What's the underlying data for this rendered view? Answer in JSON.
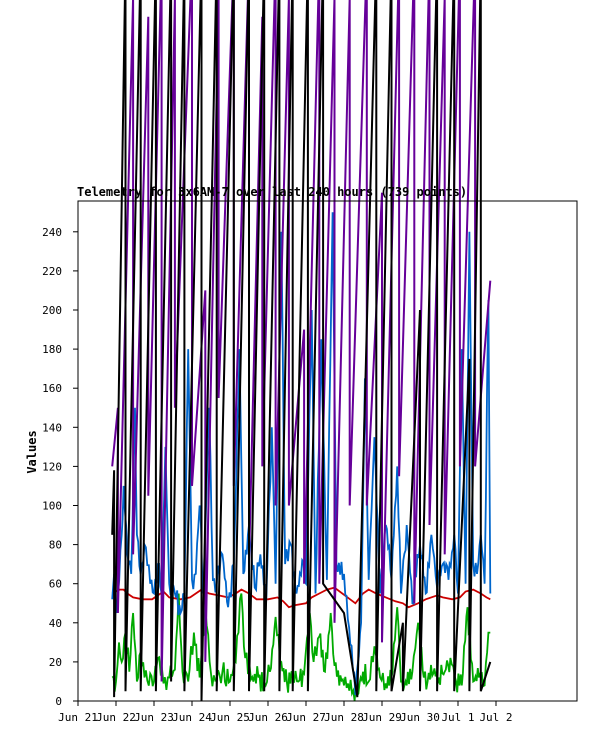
{
  "chart_data": {
    "type": "line",
    "title": "Telemetry for 3x6AM-7 over last 240 hours (739 points)",
    "xlabel": "",
    "ylabel": "Values",
    "ylim": [
      0,
      255
    ],
    "yticks": [
      0,
      20,
      40,
      60,
      80,
      100,
      120,
      140,
      160,
      180,
      200,
      220,
      240
    ],
    "xlim_days": [
      0,
      11
    ],
    "x_tick_labels": [
      "Jun 21",
      "Jun 22",
      "Jun 23",
      "Jun 24",
      "Jun 25",
      "Jun 26",
      "Jun 27",
      "Jun 28",
      "Jun 29",
      "Jun 30",
      "Jul 1",
      "Jul 2"
    ],
    "grid": false,
    "legend": "none",
    "series": [
      {
        "color": "#cc0000",
        "style": "smooth",
        "points": [
          [
            0.9,
            55
          ],
          [
            1.0,
            56
          ],
          [
            1.1,
            57
          ],
          [
            1.2,
            57
          ],
          [
            1.3,
            55
          ],
          [
            1.45,
            53
          ],
          [
            1.7,
            52
          ],
          [
            1.95,
            52
          ],
          [
            2.1,
            54
          ],
          [
            2.25,
            56
          ],
          [
            2.4,
            53
          ],
          [
            2.7,
            52
          ],
          [
            2.95,
            53
          ],
          [
            3.1,
            55
          ],
          [
            3.25,
            57
          ],
          [
            3.45,
            55
          ],
          [
            3.7,
            54
          ],
          [
            3.95,
            53
          ],
          [
            4.15,
            55
          ],
          [
            4.3,
            57
          ],
          [
            4.5,
            55
          ],
          [
            4.7,
            52
          ],
          [
            5.0,
            52
          ],
          [
            5.25,
            53
          ],
          [
            5.4,
            51
          ],
          [
            5.55,
            48
          ],
          [
            5.7,
            49
          ],
          [
            6.0,
            50
          ],
          [
            6.15,
            53
          ],
          [
            6.35,
            55
          ],
          [
            6.55,
            57
          ],
          [
            6.75,
            58
          ],
          [
            7.3,
            50
          ],
          [
            7.5,
            55
          ],
          [
            7.65,
            57
          ],
          [
            7.85,
            55
          ],
          [
            8.1,
            53
          ],
          [
            8.35,
            51
          ],
          [
            8.55,
            50
          ],
          [
            8.7,
            48
          ],
          [
            8.95,
            50
          ],
          [
            9.15,
            52
          ],
          [
            9.45,
            54
          ],
          [
            9.6,
            53
          ],
          [
            9.85,
            52
          ],
          [
            10.05,
            53
          ],
          [
            10.2,
            56
          ],
          [
            10.4,
            57
          ],
          [
            10.6,
            55
          ],
          [
            10.75,
            53
          ],
          [
            10.85,
            52
          ]
        ]
      },
      {
        "color": "#00aa00",
        "style": "noisy",
        "points": [
          [
            0.9,
            12
          ],
          [
            1.0,
            10
          ],
          [
            1.08,
            30
          ],
          [
            1.15,
            20
          ],
          [
            1.25,
            35
          ],
          [
            1.35,
            15
          ],
          [
            1.45,
            45
          ],
          [
            1.55,
            10
          ],
          [
            1.65,
            25
          ],
          [
            1.75,
            12
          ],
          [
            1.9,
            14
          ],
          [
            2.0,
            10
          ],
          [
            2.1,
            22
          ],
          [
            2.25,
            9
          ],
          [
            2.4,
            12
          ],
          [
            2.55,
            16
          ],
          [
            2.65,
            55
          ],
          [
            2.75,
            15
          ],
          [
            2.9,
            10
          ],
          [
            3.05,
            35
          ],
          [
            3.2,
            12
          ],
          [
            3.35,
            48
          ],
          [
            3.5,
            14
          ],
          [
            3.65,
            11
          ],
          [
            3.8,
            15
          ],
          [
            4.0,
            10
          ],
          [
            4.15,
            20
          ],
          [
            4.3,
            55
          ],
          [
            4.4,
            22
          ],
          [
            4.55,
            11
          ],
          [
            4.75,
            12
          ],
          [
            4.9,
            9
          ],
          [
            5.05,
            15
          ],
          [
            5.2,
            43
          ],
          [
            5.35,
            20
          ],
          [
            5.5,
            9
          ],
          [
            5.65,
            12
          ],
          [
            5.8,
            10
          ],
          [
            5.95,
            14
          ],
          [
            6.1,
            45
          ],
          [
            6.2,
            20
          ],
          [
            6.35,
            33
          ],
          [
            6.5,
            15
          ],
          [
            6.65,
            45
          ],
          [
            6.75,
            18
          ],
          [
            7.0,
            8
          ],
          [
            7.35,
            3
          ],
          [
            7.5,
            15
          ],
          [
            7.65,
            10
          ],
          [
            7.8,
            28
          ],
          [
            7.95,
            12
          ],
          [
            8.1,
            9
          ],
          [
            8.25,
            12
          ],
          [
            8.4,
            48
          ],
          [
            8.5,
            10
          ],
          [
            8.65,
            8
          ],
          [
            8.8,
            15
          ],
          [
            8.95,
            40
          ],
          [
            9.1,
            12
          ],
          [
            9.2,
            10
          ],
          [
            9.35,
            14
          ],
          [
            9.5,
            12
          ],
          [
            9.65,
            15
          ],
          [
            9.8,
            22
          ],
          [
            9.95,
            10
          ],
          [
            10.1,
            8
          ],
          [
            10.25,
            48
          ],
          [
            10.4,
            10
          ],
          [
            10.55,
            12
          ],
          [
            10.7,
            8
          ],
          [
            10.8,
            35
          ],
          [
            10.85,
            35
          ]
        ]
      },
      {
        "color": "#0066cc",
        "style": "noisy",
        "points": [
          [
            0.9,
            52
          ],
          [
            0.95,
            65
          ],
          [
            1.0,
            45
          ],
          [
            1.05,
            55
          ],
          [
            1.15,
            85
          ],
          [
            1.2,
            110
          ],
          [
            1.3,
            75
          ],
          [
            1.4,
            65
          ],
          [
            1.5,
            150
          ],
          [
            1.55,
            85
          ],
          [
            1.65,
            65
          ],
          [
            1.75,
            80
          ],
          [
            1.9,
            60
          ],
          [
            2.0,
            55
          ],
          [
            2.1,
            70
          ],
          [
            2.2,
            55
          ],
          [
            2.3,
            130
          ],
          [
            2.4,
            60
          ],
          [
            2.55,
            55
          ],
          [
            2.7,
            45
          ],
          [
            2.8,
            55
          ],
          [
            2.9,
            180
          ],
          [
            3.0,
            62
          ],
          [
            3.1,
            65
          ],
          [
            3.2,
            100
          ],
          [
            3.3,
            55
          ],
          [
            3.45,
            150
          ],
          [
            3.55,
            62
          ],
          [
            3.65,
            60
          ],
          [
            3.8,
            75
          ],
          [
            3.95,
            48
          ],
          [
            4.1,
            70
          ],
          [
            4.25,
            180
          ],
          [
            4.35,
            65
          ],
          [
            4.5,
            90
          ],
          [
            4.65,
            58
          ],
          [
            4.8,
            75
          ],
          [
            4.95,
            50
          ],
          [
            5.1,
            140
          ],
          [
            5.2,
            60
          ],
          [
            5.35,
            240
          ],
          [
            5.45,
            70
          ],
          [
            5.6,
            80
          ],
          [
            5.75,
            55
          ],
          [
            5.9,
            72
          ],
          [
            6.0,
            60
          ],
          [
            6.15,
            200
          ],
          [
            6.25,
            55
          ],
          [
            6.4,
            185
          ],
          [
            6.55,
            62
          ],
          [
            6.7,
            250
          ],
          [
            6.8,
            70
          ],
          [
            7.0,
            65
          ],
          [
            7.3,
            3
          ],
          [
            7.45,
            40
          ],
          [
            7.55,
            165
          ],
          [
            7.65,
            62
          ],
          [
            7.8,
            135
          ],
          [
            7.95,
            55
          ],
          [
            8.1,
            90
          ],
          [
            8.25,
            62
          ],
          [
            8.4,
            120
          ],
          [
            8.5,
            55
          ],
          [
            8.65,
            90
          ],
          [
            8.8,
            50
          ],
          [
            9.0,
            80
          ],
          [
            9.15,
            55
          ],
          [
            9.3,
            85
          ],
          [
            9.45,
            58
          ],
          [
            9.6,
            70
          ],
          [
            9.75,
            62
          ],
          [
            9.9,
            85
          ],
          [
            10.0,
            55
          ],
          [
            10.1,
            180
          ],
          [
            10.2,
            60
          ],
          [
            10.3,
            240
          ],
          [
            10.4,
            70
          ],
          [
            10.5,
            65
          ],
          [
            10.6,
            85
          ],
          [
            10.7,
            60
          ],
          [
            10.8,
            205
          ],
          [
            10.85,
            55
          ]
        ]
      },
      {
        "color": "#660099",
        "style": "sawtooth",
        "points": [
          [
            0.9,
            120
          ],
          [
            1.05,
            150
          ],
          [
            1.05,
            45
          ],
          [
            1.45,
            360
          ],
          [
            1.45,
            75
          ],
          [
            1.85,
            350
          ],
          [
            1.85,
            105
          ],
          [
            2.2,
            380
          ],
          [
            2.2,
            10
          ],
          [
            2.55,
            360
          ],
          [
            2.55,
            150
          ],
          [
            3.0,
            380
          ],
          [
            3.0,
            110
          ],
          [
            3.35,
            210
          ],
          [
            3.35,
            20
          ],
          [
            3.7,
            360
          ],
          [
            3.7,
            155
          ],
          [
            4.1,
            380
          ],
          [
            4.1,
            110
          ],
          [
            4.5,
            380
          ],
          [
            4.5,
            70
          ],
          [
            4.85,
            350
          ],
          [
            4.85,
            120
          ],
          [
            5.2,
            380
          ],
          [
            5.2,
            100
          ],
          [
            5.55,
            360
          ],
          [
            5.55,
            100
          ],
          [
            5.95,
            190
          ],
          [
            5.95,
            60
          ],
          [
            6.35,
            380
          ],
          [
            6.35,
            60
          ],
          [
            6.75,
            360
          ],
          [
            6.75,
            40
          ],
          [
            7.15,
            360
          ],
          [
            7.15,
            100
          ],
          [
            7.6,
            380
          ],
          [
            7.6,
            100
          ],
          [
            8.0,
            260
          ],
          [
            8.0,
            30
          ],
          [
            8.45,
            380
          ],
          [
            8.45,
            115
          ],
          [
            8.85,
            380
          ],
          [
            8.85,
            50
          ],
          [
            9.25,
            380
          ],
          [
            9.25,
            90
          ],
          [
            9.65,
            360
          ],
          [
            9.65,
            75
          ],
          [
            10.05,
            380
          ],
          [
            10.05,
            120
          ],
          [
            10.45,
            380
          ],
          [
            10.45,
            120
          ],
          [
            10.85,
            215
          ]
        ]
      },
      {
        "color": "#000000",
        "style": "sawtooth",
        "points": [
          [
            0.9,
            85
          ],
          [
            0.95,
            118
          ],
          [
            0.95,
            2
          ],
          [
            1.25,
            380
          ],
          [
            1.25,
            5
          ],
          [
            1.65,
            380
          ],
          [
            1.65,
            5
          ],
          [
            2.05,
            380
          ],
          [
            2.05,
            5
          ],
          [
            2.45,
            380
          ],
          [
            2.45,
            10
          ],
          [
            2.8,
            380
          ],
          [
            2.8,
            5
          ],
          [
            3.25,
            380
          ],
          [
            3.25,
            0
          ],
          [
            3.65,
            380
          ],
          [
            3.65,
            5
          ],
          [
            4.1,
            380
          ],
          [
            4.1,
            5
          ],
          [
            4.5,
            380
          ],
          [
            4.5,
            5
          ],
          [
            4.9,
            380
          ],
          [
            4.9,
            5
          ],
          [
            5.3,
            380
          ],
          [
            5.3,
            5
          ],
          [
            5.65,
            380
          ],
          [
            5.65,
            5
          ],
          [
            6.05,
            380
          ],
          [
            6.05,
            5
          ],
          [
            6.45,
            380
          ],
          [
            6.45,
            60
          ],
          [
            7.0,
            45
          ],
          [
            7.35,
            2
          ],
          [
            7.85,
            380
          ],
          [
            7.85,
            5
          ],
          [
            8.25,
            380
          ],
          [
            8.25,
            5
          ],
          [
            8.55,
            40
          ],
          [
            8.55,
            5
          ],
          [
            9.0,
            200
          ],
          [
            9.0,
            5
          ],
          [
            9.45,
            380
          ],
          [
            9.45,
            5
          ],
          [
            9.9,
            380
          ],
          [
            9.9,
            5
          ],
          [
            10.3,
            175
          ],
          [
            10.3,
            5
          ],
          [
            10.6,
            380
          ],
          [
            10.6,
            5
          ],
          [
            10.85,
            20
          ]
        ]
      }
    ]
  }
}
